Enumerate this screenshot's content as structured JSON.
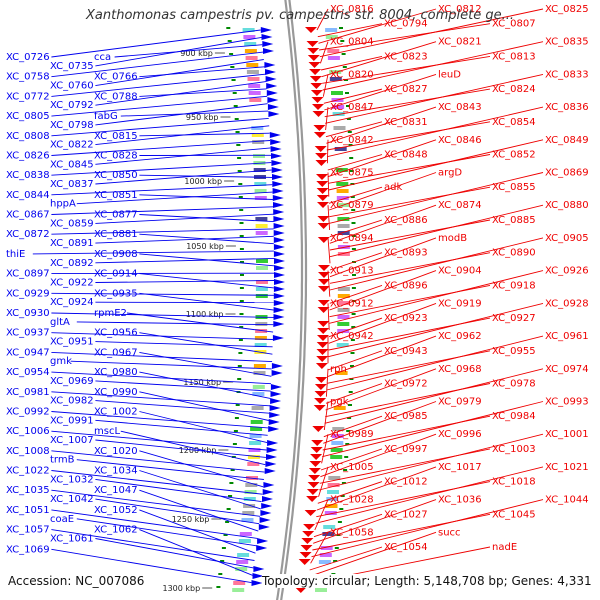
{
  "title": "Xanthomonas campestris pv. campestris str. 8004, complete ge...",
  "footer": {
    "accession": "Accession: NC_007086",
    "summary": "Topology: circular; Length: 5,148,708 bp; Genes: 4,331"
  },
  "colors": {
    "forward": "#0000ee",
    "reverse": "#ee0000",
    "backbone": "#999999",
    "tick": "#008800"
  },
  "scale_ticks": [
    "900 kbp",
    "950 kbp",
    "1000 kbp",
    "1050 kbp",
    "1100 kbp",
    "1150 kbp",
    "1200 kbp",
    "1250 kbp",
    "1300 kbp"
  ],
  "left_labels": [
    "XC_0726",
    "XC_0735",
    "cca",
    "XC_0758",
    "XC_0760",
    "XC_0766",
    "XC_0772",
    "XC_0792",
    "XC_0788",
    "XC_0805",
    "XC_0798",
    "fabG",
    "XC_0808",
    "XC_0822",
    "XC_0815",
    "XC_0826",
    "XC_0845",
    "XC_0828",
    "XC_0838",
    "XC_0837",
    "XC_0850",
    "XC_0844",
    "hppA",
    "XC_0851",
    "XC_0867",
    "XC_0859",
    "XC_0877",
    "XC_0872",
    "XC_0891",
    "XC_0881",
    "thiE",
    "XC_0892",
    "XC_0908",
    "XC_0897",
    "XC_0922",
    "XC_0914",
    "XC_0929",
    "XC_0924",
    "XC_0935",
    "XC_0930",
    "gltA",
    "rpmE2",
    "XC_0937",
    "XC_0951",
    "XC_0956",
    "XC_0947",
    "gmk",
    "XC_0967",
    "XC_0954",
    "XC_0969",
    "XC_0980",
    "XC_0981",
    "XC_0982",
    "XC_0990",
    "XC_0992",
    "XC_0991",
    "XC_1002",
    "XC_1006",
    "XC_1007",
    "mscL",
    "XC_1008",
    "trmB",
    "XC_1020",
    "XC_1022",
    "XC_1032",
    "XC_1034",
    "XC_1035",
    "XC_1042",
    "XC_1047",
    "XC_1051",
    "coaE",
    "XC_1052",
    "XC_1057",
    "XC_1061",
    "XC_1062",
    "XC_1069"
  ],
  "right_labels": [
    "XC_0816",
    "XC_0794",
    "XC_0812",
    "XC_0807",
    "XC_0825",
    "XC_0804",
    "XC_0823",
    "XC_0821",
    "XC_0813",
    "XC_0835",
    "XC_0820",
    "XC_0827",
    "leuD",
    "XC_0824",
    "XC_0833",
    "XC_0847",
    "XC_0831",
    "XC_0843",
    "XC_0854",
    "XC_0836",
    "XC_0842",
    "XC_0848",
    "XC_0846",
    "XC_0852",
    "XC_0849",
    "XC_0875",
    "adk",
    "argD",
    "XC_0855",
    "XC_0869",
    "XC_0879",
    "XC_0886",
    "XC_0874",
    "XC_0885",
    "XC_0880",
    "XC_0894",
    "XC_0893",
    "modB",
    "XC_0890",
    "XC_0905",
    "XC_0913",
    "XC_0896",
    "XC_0904",
    "XC_0918",
    "XC_0926",
    "XC_0912",
    "XC_0923",
    "XC_0919",
    "XC_0927",
    "XC_0928",
    "XC_0942",
    "XC_0943",
    "XC_0962",
    "XC_0955",
    "XC_0961",
    "rph",
    "XC_0972",
    "XC_0968",
    "XC_0978",
    "XC_0974",
    "pgk",
    "XC_0985",
    "XC_0979",
    "XC_0984",
    "XC_0993",
    "XC_0989",
    "XC_0997",
    "XC_0996",
    "XC_1003",
    "XC_1001",
    "XC_1005",
    "XC_1012",
    "XC_1017",
    "XC_1018",
    "XC_1021",
    "XC_1028",
    "XC_1027",
    "XC_1036",
    "XC_1045",
    "XC_1044",
    "XC_1058",
    "XC_1054",
    "succ",
    "nadE"
  ]
}
